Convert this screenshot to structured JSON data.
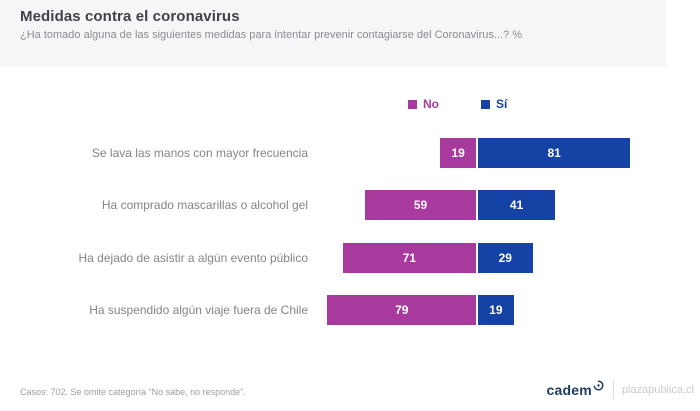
{
  "header": {
    "title": "Medidas contra el coronavirus",
    "subtitle": "¿Ha tomado alguna de las siguientes medidas para intentar prevenir contagiarse del Coronavirus...? %"
  },
  "colors": {
    "no": "#a93a9d",
    "si": "#1442a5",
    "header_bg": "#f4f6f8",
    "bar_text": "#ffffff"
  },
  "legend": [
    {
      "label": "No",
      "color": "#a93a9d"
    },
    {
      "label": "Sí",
      "color": "#1442a5"
    }
  ],
  "chart_data": {
    "type": "bar",
    "orientation": "horizontal",
    "layout_hint": "diverging stacked bars anchored at a central divider; 'No' grows left, 'Sí' grows right; value labels inside bars; no axes or gridlines; category labels right-aligned",
    "categories": [
      "Se lava las manos con mayor frecuencia",
      "Ha comprado mascarillas o alcohol gel",
      "Ha dejado de asistir a algún evento público",
      "Ha suspendido algún viaje fuera de Chile"
    ],
    "series": [
      {
        "name": "No",
        "color": "#a93a9d",
        "values": [
          19,
          59,
          71,
          79
        ]
      },
      {
        "name": "Sí",
        "color": "#1442a5",
        "values": [
          81,
          41,
          29,
          19
        ]
      }
    ],
    "value_range": [
      0,
      100
    ],
    "legend_position": "top-center-right"
  },
  "footer": {
    "note": "Casos: 702. Se omite categoría “No sabe, no responde”.",
    "brand": "cadem",
    "site": "plazapublica.cl"
  }
}
